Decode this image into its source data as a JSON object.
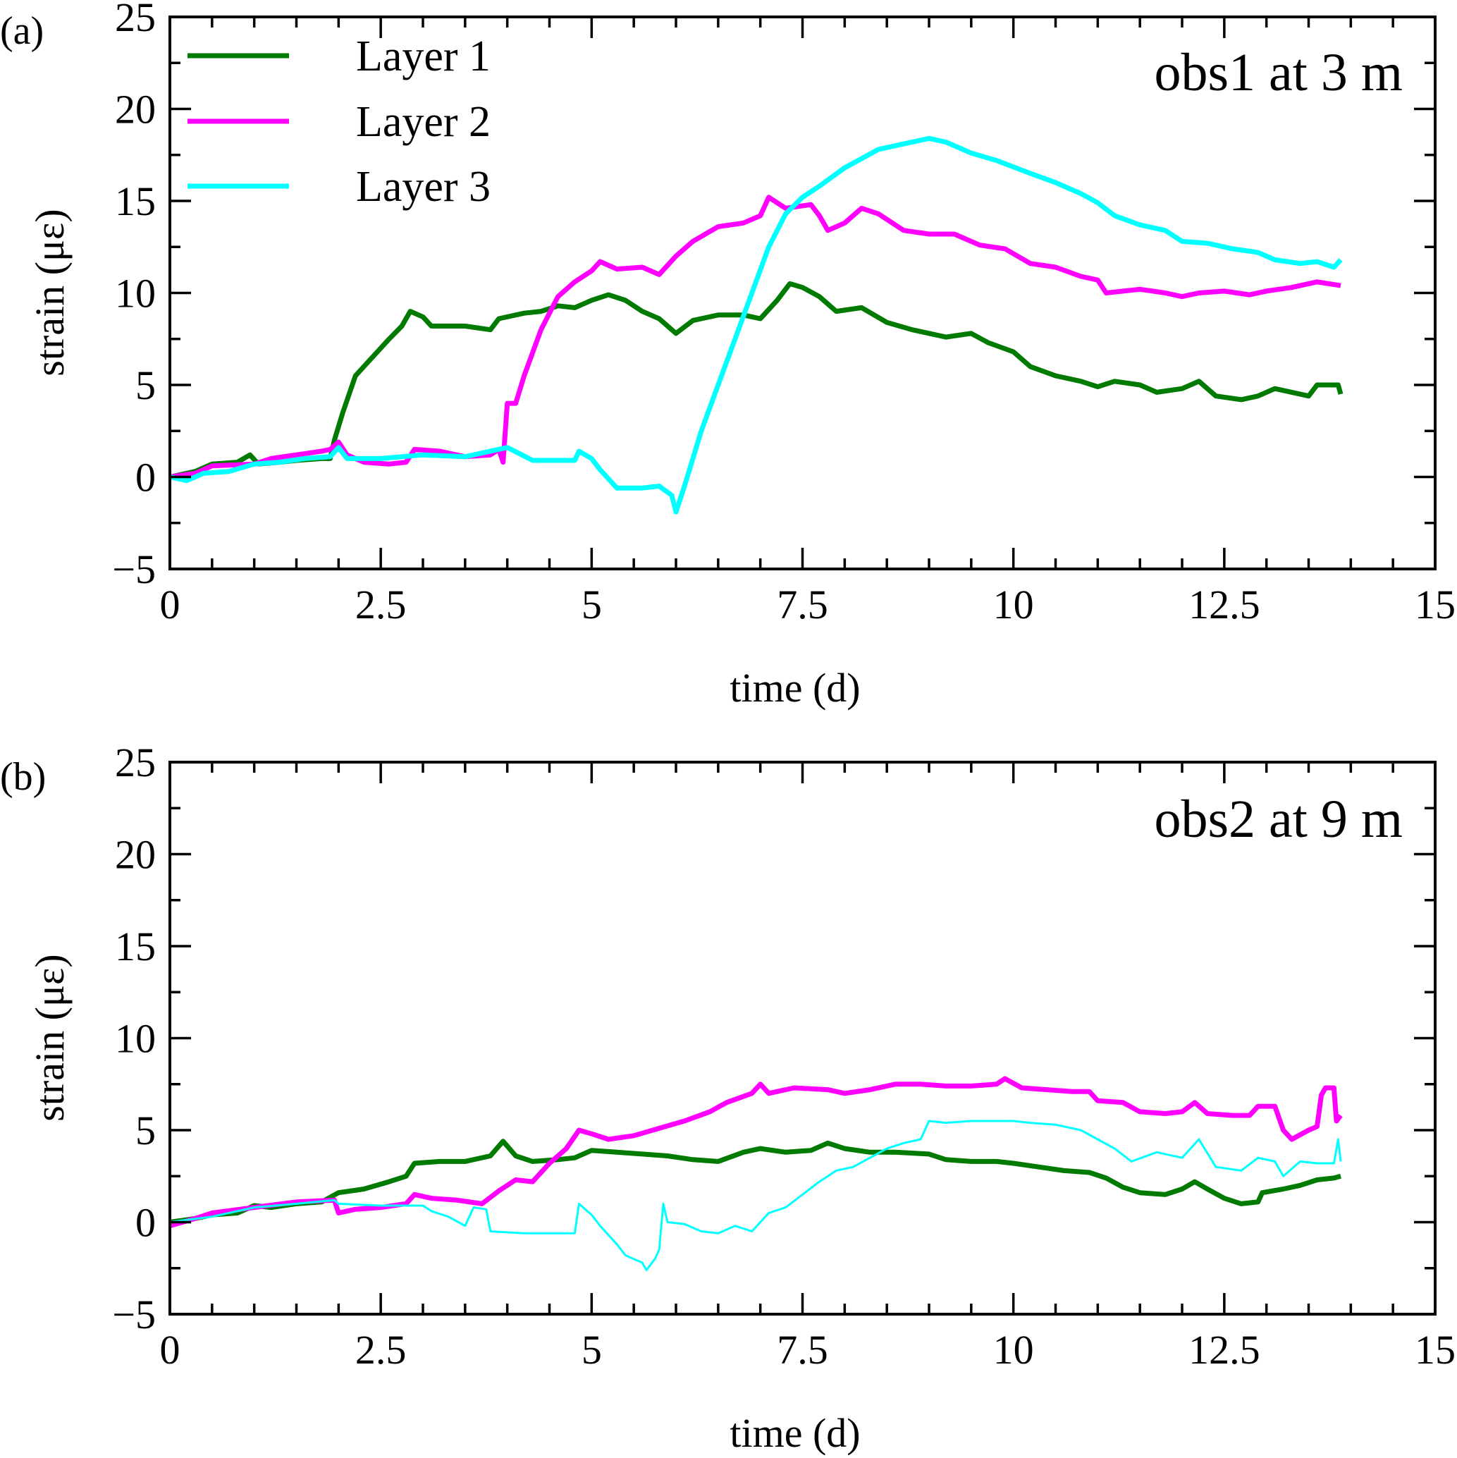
{
  "chart_data": [
    {
      "type": "line",
      "panel_label": "(a)",
      "annotation": "obs1 at 3 m",
      "xlabel": "time (d)",
      "ylabel": "strain (με)",
      "xlim": [
        0,
        15
      ],
      "ylim": [
        -5,
        25
      ],
      "xticks": [
        0,
        2.5,
        5,
        7.5,
        10,
        12.5,
        15
      ],
      "xtick_labels": [
        "0",
        "2.5",
        "5",
        "7.5",
        "10",
        "12.5",
        "15"
      ],
      "yticks": [
        -5,
        0,
        5,
        10,
        15,
        20,
        25
      ],
      "ytick_labels": [
        "−5",
        "0",
        "5",
        "10",
        "15",
        "20",
        "25"
      ],
      "x_minor_step": 0.5,
      "y_minor_step": 2.5,
      "grid": false,
      "legend": {
        "placement": "top-left",
        "entries": [
          "Layer 1",
          "Layer 2",
          "Layer 3"
        ]
      },
      "series": [
        {
          "name": "Layer 1",
          "color": "#007a00",
          "x": [
            0,
            0.3,
            0.5,
            0.8,
            0.95,
            1.05,
            1.3,
            1.5,
            1.8,
            1.9,
            1.95,
            2.05,
            2.2,
            2.4,
            2.6,
            2.75,
            2.85,
            3.0,
            3.1,
            3.5,
            3.8,
            3.9,
            4.2,
            4.4,
            4.6,
            4.8,
            5.0,
            5.2,
            5.4,
            5.6,
            5.8,
            6.0,
            6.2,
            6.5,
            6.8,
            7.0,
            7.2,
            7.35,
            7.5,
            7.7,
            7.9,
            8.2,
            8.5,
            8.8,
            9.2,
            9.5,
            9.7,
            10.0,
            10.2,
            10.5,
            10.8,
            11.0,
            11.2,
            11.5,
            11.7,
            12.0,
            12.2,
            12.4,
            12.7,
            12.9,
            13.1,
            13.3,
            13.5,
            13.6,
            13.85,
            13.88
          ],
          "y": [
            0,
            0.3,
            0.7,
            0.8,
            1.2,
            0.7,
            0.8,
            0.9,
            1.0,
            1.0,
            2.0,
            3.5,
            5.5,
            6.5,
            7.5,
            8.2,
            9.0,
            8.7,
            8.2,
            8.2,
            8.0,
            8.6,
            8.9,
            9.0,
            9.3,
            9.2,
            9.6,
            9.9,
            9.6,
            9.0,
            8.6,
            7.8,
            8.5,
            8.8,
            8.8,
            8.6,
            9.6,
            10.5,
            10.3,
            9.8,
            9.0,
            9.2,
            8.4,
            8.0,
            7.6,
            7.8,
            7.3,
            6.8,
            6.0,
            5.5,
            5.2,
            4.9,
            5.2,
            5.0,
            4.6,
            4.8,
            5.2,
            4.4,
            4.2,
            4.4,
            4.8,
            4.6,
            4.4,
            5.0,
            5.0,
            4.5
          ]
        },
        {
          "name": "Layer 2",
          "color": "#ff00ff",
          "x": [
            0,
            0.3,
            0.5,
            1.0,
            1.2,
            1.5,
            1.8,
            1.9,
            2.0,
            2.1,
            2.3,
            2.6,
            2.8,
            2.9,
            3.2,
            3.5,
            3.8,
            3.9,
            3.95,
            4.0,
            4.1,
            4.2,
            4.4,
            4.6,
            4.8,
            5.0,
            5.1,
            5.3,
            5.6,
            5.8,
            6.0,
            6.2,
            6.5,
            6.8,
            7.0,
            7.1,
            7.3,
            7.6,
            7.7,
            7.8,
            8.0,
            8.2,
            8.4,
            8.7,
            9.0,
            9.3,
            9.6,
            9.9,
            10.2,
            10.5,
            10.8,
            11.0,
            11.1,
            11.5,
            11.8,
            12.0,
            12.2,
            12.5,
            12.8,
            13.0,
            13.3,
            13.6,
            13.88
          ],
          "y": [
            0,
            0.2,
            0.6,
            0.7,
            1.0,
            1.2,
            1.4,
            1.5,
            1.9,
            1.2,
            0.8,
            0.7,
            0.8,
            1.5,
            1.4,
            1.1,
            1.2,
            1.5,
            0.8,
            4.0,
            4.0,
            5.5,
            8.0,
            9.8,
            10.6,
            11.2,
            11.7,
            11.3,
            11.4,
            11.0,
            12.0,
            12.8,
            13.6,
            13.8,
            14.2,
            15.2,
            14.6,
            14.8,
            14.2,
            13.4,
            13.8,
            14.6,
            14.3,
            13.4,
            13.2,
            13.2,
            12.6,
            12.4,
            11.6,
            11.4,
            10.9,
            10.7,
            10.0,
            10.2,
            10.0,
            9.8,
            10.0,
            10.1,
            9.9,
            10.1,
            10.3,
            10.6,
            10.4
          ]
        },
        {
          "name": "Layer 3",
          "color": "#00ffff",
          "x": [
            0,
            0.2,
            0.4,
            0.7,
            1.0,
            1.3,
            1.6,
            1.9,
            2.0,
            2.1,
            2.5,
            3.0,
            3.5,
            4.0,
            4.3,
            4.6,
            4.8,
            4.85,
            5.0,
            5.1,
            5.3,
            5.6,
            5.8,
            5.95,
            6.0,
            6.1,
            6.3,
            6.5,
            6.7,
            6.9,
            7.1,
            7.3,
            7.5,
            7.7,
            8.0,
            8.2,
            8.4,
            8.7,
            9.0,
            9.2,
            9.5,
            9.8,
            10.2,
            10.5,
            10.8,
            11.0,
            11.2,
            11.5,
            11.8,
            12.0,
            12.3,
            12.6,
            12.9,
            13.1,
            13.4,
            13.6,
            13.8,
            13.88
          ],
          "y": [
            0,
            -0.2,
            0.2,
            0.3,
            0.7,
            0.8,
            1.0,
            1.1,
            1.6,
            1.0,
            1.0,
            1.2,
            1.1,
            1.6,
            0.9,
            0.9,
            0.9,
            1.4,
            1.0,
            0.4,
            -0.6,
            -0.6,
            -0.5,
            -1.0,
            -1.9,
            -0.5,
            2.5,
            5.0,
            7.5,
            10.0,
            12.5,
            14.3,
            15.2,
            15.8,
            16.8,
            17.3,
            17.8,
            18.1,
            18.4,
            18.2,
            17.6,
            17.2,
            16.5,
            16.0,
            15.4,
            14.9,
            14.2,
            13.7,
            13.4,
            12.8,
            12.7,
            12.4,
            12.2,
            11.8,
            11.6,
            11.7,
            11.4,
            11.8
          ]
        }
      ]
    },
    {
      "type": "line",
      "panel_label": "(b)",
      "annotation": "obs2 at 9 m",
      "xlabel": "time (d)",
      "ylabel": "strain (με)",
      "xlim": [
        0,
        15
      ],
      "ylim": [
        -5,
        25
      ],
      "xticks": [
        0,
        2.5,
        5,
        7.5,
        10,
        12.5,
        15
      ],
      "xtick_labels": [
        "0",
        "2.5",
        "5",
        "7.5",
        "10",
        "12.5",
        "15"
      ],
      "yticks": [
        -5,
        0,
        5,
        10,
        15,
        20,
        25
      ],
      "ytick_labels": [
        "−5",
        "0",
        "5",
        "10",
        "15",
        "20",
        "25"
      ],
      "x_minor_step": 0.5,
      "y_minor_step": 2.5,
      "grid": false,
      "legend": null,
      "series": [
        {
          "name": "Layer 1",
          "color": "#007a00",
          "x": [
            0,
            0.3,
            0.5,
            0.8,
            1.0,
            1.2,
            1.5,
            1.8,
            2.0,
            2.3,
            2.6,
            2.8,
            2.9,
            3.2,
            3.5,
            3.8,
            3.95,
            4.1,
            4.3,
            4.6,
            4.8,
            5.0,
            5.3,
            5.6,
            5.9,
            6.2,
            6.5,
            6.8,
            7.0,
            7.3,
            7.6,
            7.8,
            8.0,
            8.3,
            8.6,
            9.0,
            9.2,
            9.5,
            9.8,
            10.0,
            10.3,
            10.6,
            10.9,
            11.1,
            11.3,
            11.5,
            11.8,
            12.0,
            12.15,
            12.3,
            12.5,
            12.7,
            12.9,
            12.95,
            13.2,
            13.4,
            13.6,
            13.8,
            13.88
          ],
          "y": [
            0,
            0.2,
            0.4,
            0.5,
            0.9,
            0.8,
            1.0,
            1.1,
            1.6,
            1.8,
            2.2,
            2.5,
            3.2,
            3.3,
            3.3,
            3.6,
            4.4,
            3.6,
            3.3,
            3.4,
            3.5,
            3.9,
            3.8,
            3.7,
            3.6,
            3.4,
            3.3,
            3.8,
            4.0,
            3.8,
            3.9,
            4.3,
            4.0,
            3.8,
            3.8,
            3.7,
            3.4,
            3.3,
            3.3,
            3.2,
            3.0,
            2.8,
            2.7,
            2.4,
            1.9,
            1.6,
            1.5,
            1.8,
            2.2,
            1.8,
            1.3,
            1.0,
            1.1,
            1.6,
            1.8,
            2.0,
            2.3,
            2.4,
            2.5
          ]
        },
        {
          "name": "Layer 2",
          "color": "#ff00ff",
          "x": [
            0,
            0.3,
            0.5,
            1.0,
            1.5,
            1.95,
            2.0,
            2.2,
            2.5,
            2.8,
            2.9,
            3.1,
            3.4,
            3.7,
            3.9,
            4.1,
            4.3,
            4.5,
            4.7,
            4.85,
            5.0,
            5.2,
            5.5,
            5.8,
            6.1,
            6.4,
            6.6,
            6.9,
            7.0,
            7.1,
            7.4,
            7.8,
            8.0,
            8.3,
            8.6,
            8.9,
            9.2,
            9.5,
            9.8,
            9.9,
            10.1,
            10.4,
            10.7,
            10.9,
            11.0,
            11.3,
            11.5,
            11.8,
            12.0,
            12.15,
            12.3,
            12.6,
            12.8,
            12.9,
            13.1,
            13.2,
            13.3,
            13.5,
            13.6,
            13.65,
            13.7,
            13.8,
            13.83,
            13.88
          ],
          "y": [
            -0.2,
            0.2,
            0.5,
            0.8,
            1.1,
            1.2,
            0.5,
            0.7,
            0.8,
            1.0,
            1.5,
            1.3,
            1.2,
            1.0,
            1.7,
            2.3,
            2.2,
            3.2,
            4.0,
            5.0,
            4.8,
            4.5,
            4.7,
            5.1,
            5.5,
            6.0,
            6.5,
            7.0,
            7.5,
            7.0,
            7.3,
            7.2,
            7.0,
            7.2,
            7.5,
            7.5,
            7.4,
            7.4,
            7.5,
            7.8,
            7.3,
            7.2,
            7.1,
            7.1,
            6.6,
            6.5,
            6.0,
            5.9,
            6.0,
            6.5,
            5.9,
            5.8,
            5.8,
            6.3,
            6.3,
            5.0,
            4.5,
            5.0,
            5.2,
            6.9,
            7.3,
            7.3,
            5.5,
            5.8
          ]
        },
        {
          "name": "Layer 3",
          "color": "#00ffff",
          "x": [
            0,
            0.5,
            1.0,
            1.5,
            1.95,
            2.0,
            2.5,
            3.0,
            3.1,
            3.3,
            3.5,
            3.6,
            3.75,
            3.8,
            4.2,
            4.5,
            4.8,
            4.85,
            5.0,
            5.1,
            5.3,
            5.4,
            5.5,
            5.6,
            5.65,
            5.75,
            5.8,
            5.85,
            5.9,
            6.1,
            6.3,
            6.5,
            6.7,
            6.9,
            7.1,
            7.3,
            7.5,
            7.7,
            7.9,
            8.1,
            8.3,
            8.5,
            8.7,
            8.9,
            9.0,
            9.2,
            9.5,
            9.8,
            10.0,
            10.2,
            10.5,
            10.8,
            11.0,
            11.2,
            11.4,
            11.7,
            12.0,
            12.2,
            12.4,
            12.7,
            12.9,
            13.1,
            13.2,
            13.4,
            13.6,
            13.8,
            13.85,
            13.88
          ],
          "y": [
            0,
            0.3,
            0.8,
            1.0,
            1.2,
            1.0,
            0.9,
            0.9,
            0.6,
            0.3,
            -0.2,
            0.8,
            0.7,
            -0.5,
            -0.6,
            -0.6,
            -0.6,
            1.0,
            0.4,
            -0.2,
            -1.2,
            -1.8,
            -2.0,
            -2.2,
            -2.6,
            -2.0,
            -1.5,
            1.0,
            0.0,
            -0.1,
            -0.5,
            -0.6,
            -0.2,
            -0.5,
            0.5,
            0.8,
            1.5,
            2.2,
            2.8,
            3.0,
            3.5,
            4.0,
            4.3,
            4.5,
            5.5,
            5.4,
            5.5,
            5.5,
            5.5,
            5.4,
            5.3,
            5.0,
            4.5,
            4.0,
            3.3,
            3.8,
            3.5,
            4.5,
            3.0,
            2.8,
            3.5,
            3.3,
            2.5,
            3.3,
            3.2,
            3.2,
            4.5,
            3.3
          ]
        }
      ]
    }
  ]
}
